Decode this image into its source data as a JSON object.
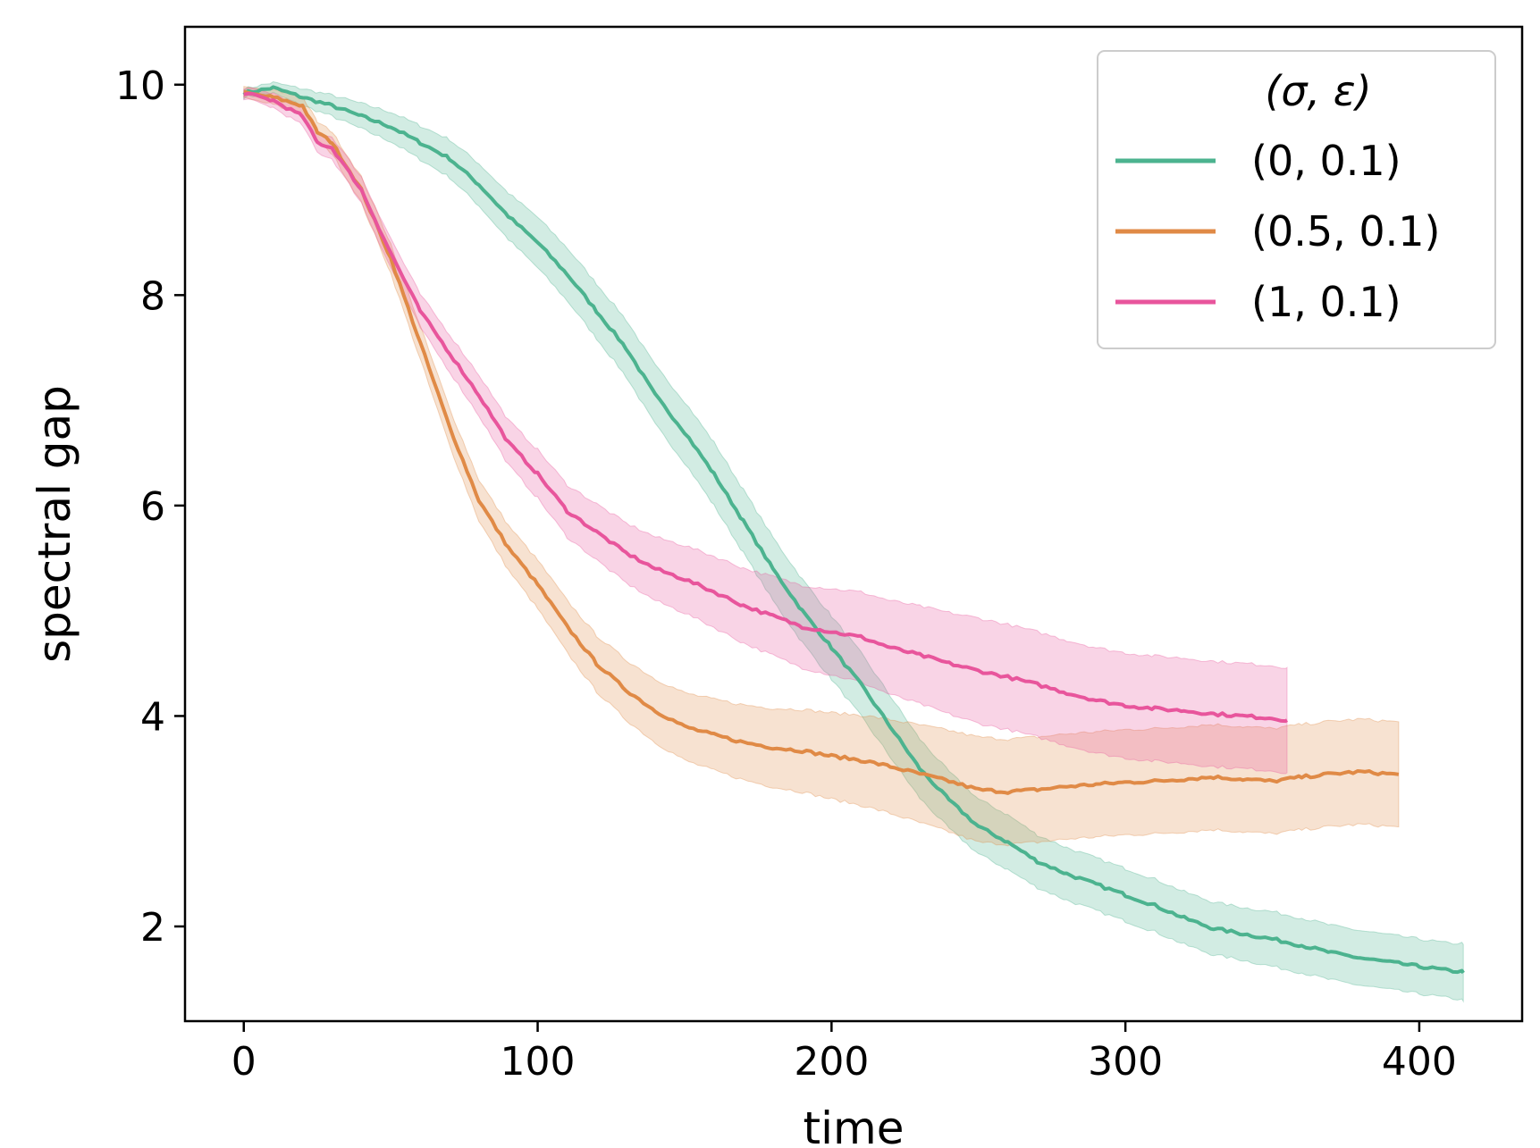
{
  "chart_data": {
    "type": "line",
    "xlabel": "time",
    "ylabel": "spectral gap",
    "xlim": [
      -20,
      435
    ],
    "ylim": [
      1.1,
      10.55
    ],
    "x_ticks": [
      0,
      100,
      200,
      300,
      400
    ],
    "y_ticks": [
      2,
      4,
      6,
      8,
      10
    ],
    "grid": false,
    "legend": {
      "title": "(σ, ε)",
      "placement": "top-right"
    },
    "series": [
      {
        "name": "(0, 0.1)",
        "color": "#4cb38f",
        "x": [
          0,
          10,
          20,
          30,
          40,
          50,
          60,
          70,
          80,
          90,
          100,
          110,
          120,
          130,
          140,
          150,
          160,
          170,
          180,
          190,
          200,
          210,
          220,
          230,
          240,
          250,
          260,
          270,
          280,
          290,
          300,
          310,
          320,
          330,
          340,
          350,
          360,
          370,
          380,
          390,
          400,
          410,
          415
        ],
        "y": [
          9.92,
          9.97,
          9.88,
          9.8,
          9.7,
          9.6,
          9.45,
          9.3,
          9.05,
          8.75,
          8.5,
          8.2,
          7.85,
          7.5,
          7.05,
          6.7,
          6.3,
          5.85,
          5.4,
          5.0,
          4.65,
          4.3,
          3.9,
          3.5,
          3.2,
          2.95,
          2.8,
          2.62,
          2.5,
          2.4,
          2.3,
          2.2,
          2.08,
          1.98,
          1.93,
          1.88,
          1.82,
          1.75,
          1.7,
          1.66,
          1.62,
          1.58,
          1.57
        ],
        "band": [
          0.04,
          0.05,
          0.08,
          0.1,
          0.12,
          0.14,
          0.16,
          0.18,
          0.2,
          0.22,
          0.24,
          0.25,
          0.26,
          0.27,
          0.28,
          0.29,
          0.3,
          0.3,
          0.3,
          0.3,
          0.3,
          0.3,
          0.29,
          0.28,
          0.27,
          0.26,
          0.26,
          0.25,
          0.25,
          0.25,
          0.25,
          0.25,
          0.25,
          0.25,
          0.25,
          0.26,
          0.26,
          0.26,
          0.26,
          0.26,
          0.26,
          0.26,
          0.27
        ]
      },
      {
        "name": "(0.5, 0.1)",
        "color": "#e08a46",
        "x": [
          0,
          10,
          20,
          25,
          30,
          40,
          50,
          60,
          70,
          80,
          90,
          100,
          110,
          120,
          130,
          140,
          150,
          160,
          170,
          180,
          190,
          200,
          210,
          220,
          230,
          240,
          250,
          260,
          270,
          280,
          290,
          300,
          310,
          320,
          330,
          340,
          350,
          360,
          370,
          380,
          390,
          393
        ],
        "y": [
          9.92,
          9.88,
          9.8,
          9.55,
          9.45,
          9.0,
          8.35,
          7.55,
          6.75,
          6.05,
          5.6,
          5.25,
          4.85,
          4.5,
          4.25,
          4.05,
          3.9,
          3.82,
          3.75,
          3.7,
          3.67,
          3.62,
          3.58,
          3.52,
          3.45,
          3.38,
          3.3,
          3.28,
          3.3,
          3.33,
          3.35,
          3.37,
          3.38,
          3.4,
          3.42,
          3.4,
          3.38,
          3.42,
          3.45,
          3.47,
          3.45,
          3.44
        ]
      },
      {
        "name": "(1, 0.1)",
        "color": "#e8559c",
        "x": [
          0,
          10,
          20,
          25,
          30,
          40,
          50,
          60,
          70,
          80,
          90,
          100,
          110,
          120,
          130,
          140,
          150,
          160,
          170,
          180,
          190,
          200,
          210,
          220,
          230,
          240,
          250,
          260,
          270,
          280,
          290,
          300,
          310,
          320,
          330,
          340,
          350,
          355
        ],
        "y": [
          9.92,
          9.85,
          9.7,
          9.45,
          9.4,
          9.0,
          8.4,
          7.85,
          7.45,
          7.05,
          6.6,
          6.3,
          5.95,
          5.75,
          5.55,
          5.4,
          5.3,
          5.18,
          5.05,
          4.95,
          4.85,
          4.8,
          4.75,
          4.65,
          4.58,
          4.5,
          4.43,
          4.37,
          4.3,
          4.22,
          4.15,
          4.1,
          4.07,
          4.05,
          4.02,
          4.0,
          3.98,
          3.96
        ]
      }
    ]
  }
}
